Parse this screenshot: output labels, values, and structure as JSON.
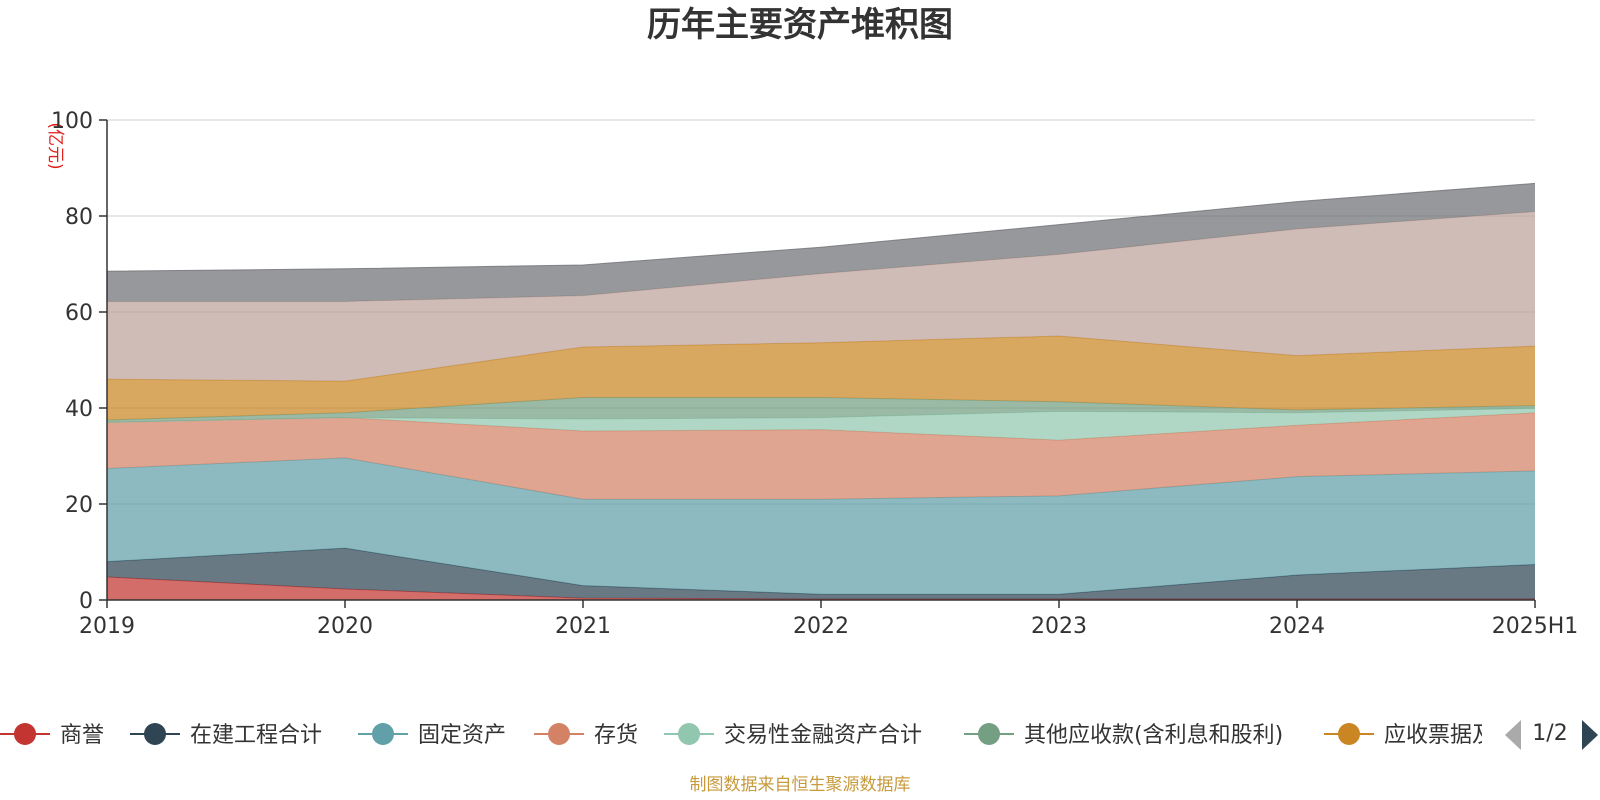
{
  "chart_data": {
    "type": "area",
    "stacked": true,
    "title": "历年主要资产堆积图",
    "unit_label": "(亿元)",
    "categories": [
      "2019",
      "2020",
      "2021",
      "2022",
      "2023",
      "2024",
      "2025H1"
    ],
    "ylim": [
      0,
      100
    ],
    "yticks": [
      "0",
      "20",
      "40",
      "60",
      "80",
      "100"
    ],
    "grid": true,
    "legend_position": "bottom",
    "series": [
      {
        "name": "商誉",
        "color": "#c23531",
        "values": [
          4.8,
          2.3,
          0.4,
          0.2,
          0.2,
          0.2,
          0.2
        ]
      },
      {
        "name": "在建工程合计",
        "color": "#2f4554",
        "values": [
          3.2,
          8.5,
          2.6,
          1.0,
          1.0,
          5.0,
          7.2
        ]
      },
      {
        "name": "固定资产",
        "color": "#61a0a8",
        "values": [
          19.4,
          18.8,
          18.0,
          19.8,
          20.5,
          20.5,
          19.5
        ]
      },
      {
        "name": "存货",
        "color": "#d48265",
        "values": [
          9.6,
          8.4,
          14.2,
          14.5,
          11.6,
          10.7,
          12.1
        ]
      },
      {
        "name": "交易性金融资产合计",
        "color": "#91c7ae",
        "values": [
          0.0,
          0.0,
          2.5,
          2.5,
          6.0,
          2.6,
          0.9
        ]
      },
      {
        "name": "其他应收款(含利息和股利)",
        "color": "#749f83",
        "values": [
          0.5,
          1.0,
          4.5,
          4.2,
          2.0,
          0.6,
          0.6
        ]
      },
      {
        "name": "应收票据及应收账款",
        "color": "#ca8622",
        "values": [
          8.5,
          6.6,
          10.5,
          11.4,
          13.7,
          11.3,
          12.4
        ]
      },
      {
        "name": "",
        "color": "#bda29a",
        "values": [
          16.2,
          16.6,
          10.7,
          14.4,
          17.0,
          26.4,
          28.0
        ]
      },
      {
        "name": "",
        "color": "#6e7074",
        "values": [
          6.3,
          6.8,
          6.4,
          5.5,
          6.2,
          5.7,
          5.9
        ]
      }
    ]
  },
  "legend": {
    "items": [
      "商誉",
      "在建工程合计",
      "固定资产",
      "存货",
      "交易性金融资产合计",
      "其他应收款(含利息和股利)",
      "应收票据及应收账款"
    ],
    "page_indicator": "1/2"
  },
  "footer": "制图数据来自恒生聚源数据库"
}
